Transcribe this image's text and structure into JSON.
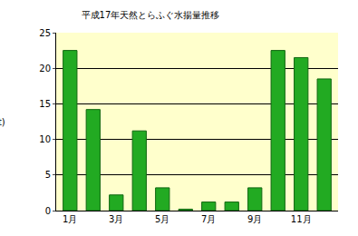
{
  "chart_data": {
    "type": "bar",
    "title": "平成17年天然とらふぐ水揚量推移",
    "y_label": "(t)",
    "categories": [
      "1月",
      null,
      "3月",
      null,
      "5月",
      null,
      "7月",
      null,
      "9月",
      null,
      "11月",
      null
    ],
    "values": [
      22.5,
      14.2,
      2.2,
      11.2,
      3.2,
      0.2,
      1.2,
      1.2,
      3.2,
      22.5,
      21.5,
      18.5
    ],
    "color": "#22aa22",
    "ylim": [
      0,
      25
    ],
    "yticks": [
      0,
      5,
      10,
      15,
      20,
      25
    ],
    "grid": true
  }
}
